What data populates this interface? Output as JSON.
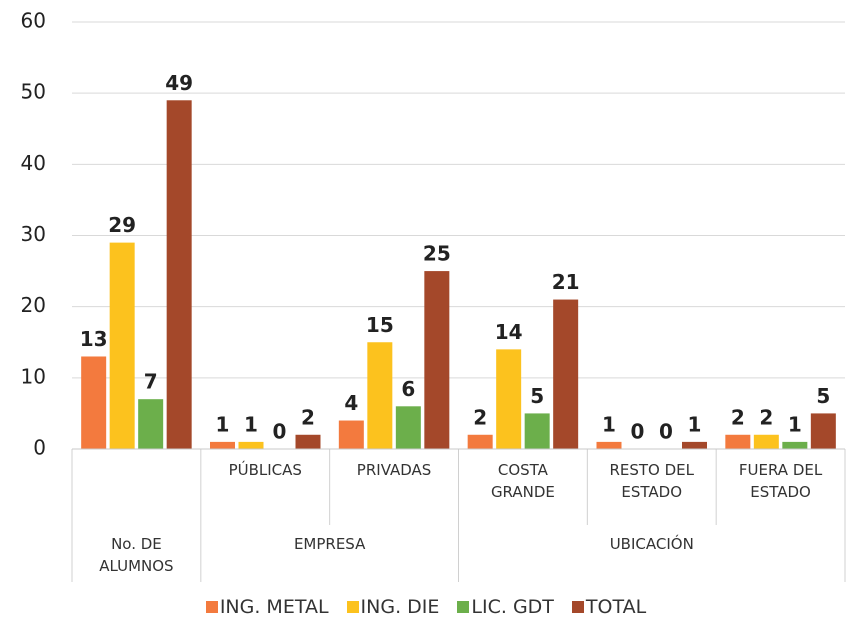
{
  "chart_data": {
    "type": "bar",
    "categories": [
      null,
      "PÚBLICAS",
      "PRIVADAS",
      "COSTA GRANDE",
      "RESTO DEL ESTADO",
      "FUERA DEL ESTADO"
    ],
    "groups": [
      {
        "label": "No. DE ALUMNOS",
        "count": 1
      },
      {
        "label": "EMPRESA",
        "count": 2
      },
      {
        "label": "UBICACIÓN",
        "count": 3
      }
    ],
    "series": [
      {
        "name": "ING. METAL",
        "color": "#f37a3e",
        "values": [
          13,
          1,
          4,
          2,
          1,
          2
        ]
      },
      {
        "name": "ING. DIE",
        "color": "#fcc21e",
        "values": [
          29,
          1,
          15,
          14,
          0,
          2
        ]
      },
      {
        "name": "LIC. GDT",
        "color": "#6caf4b",
        "values": [
          7,
          0,
          6,
          5,
          0,
          1
        ]
      },
      {
        "name": "TOTAL",
        "color": "#a4482a",
        "values": [
          49,
          2,
          25,
          21,
          1,
          5
        ]
      }
    ],
    "ylim": [
      0,
      60
    ],
    "yticks": [
      0,
      10,
      20,
      30,
      40,
      50,
      60
    ],
    "grid": true,
    "legend": "bottom"
  }
}
